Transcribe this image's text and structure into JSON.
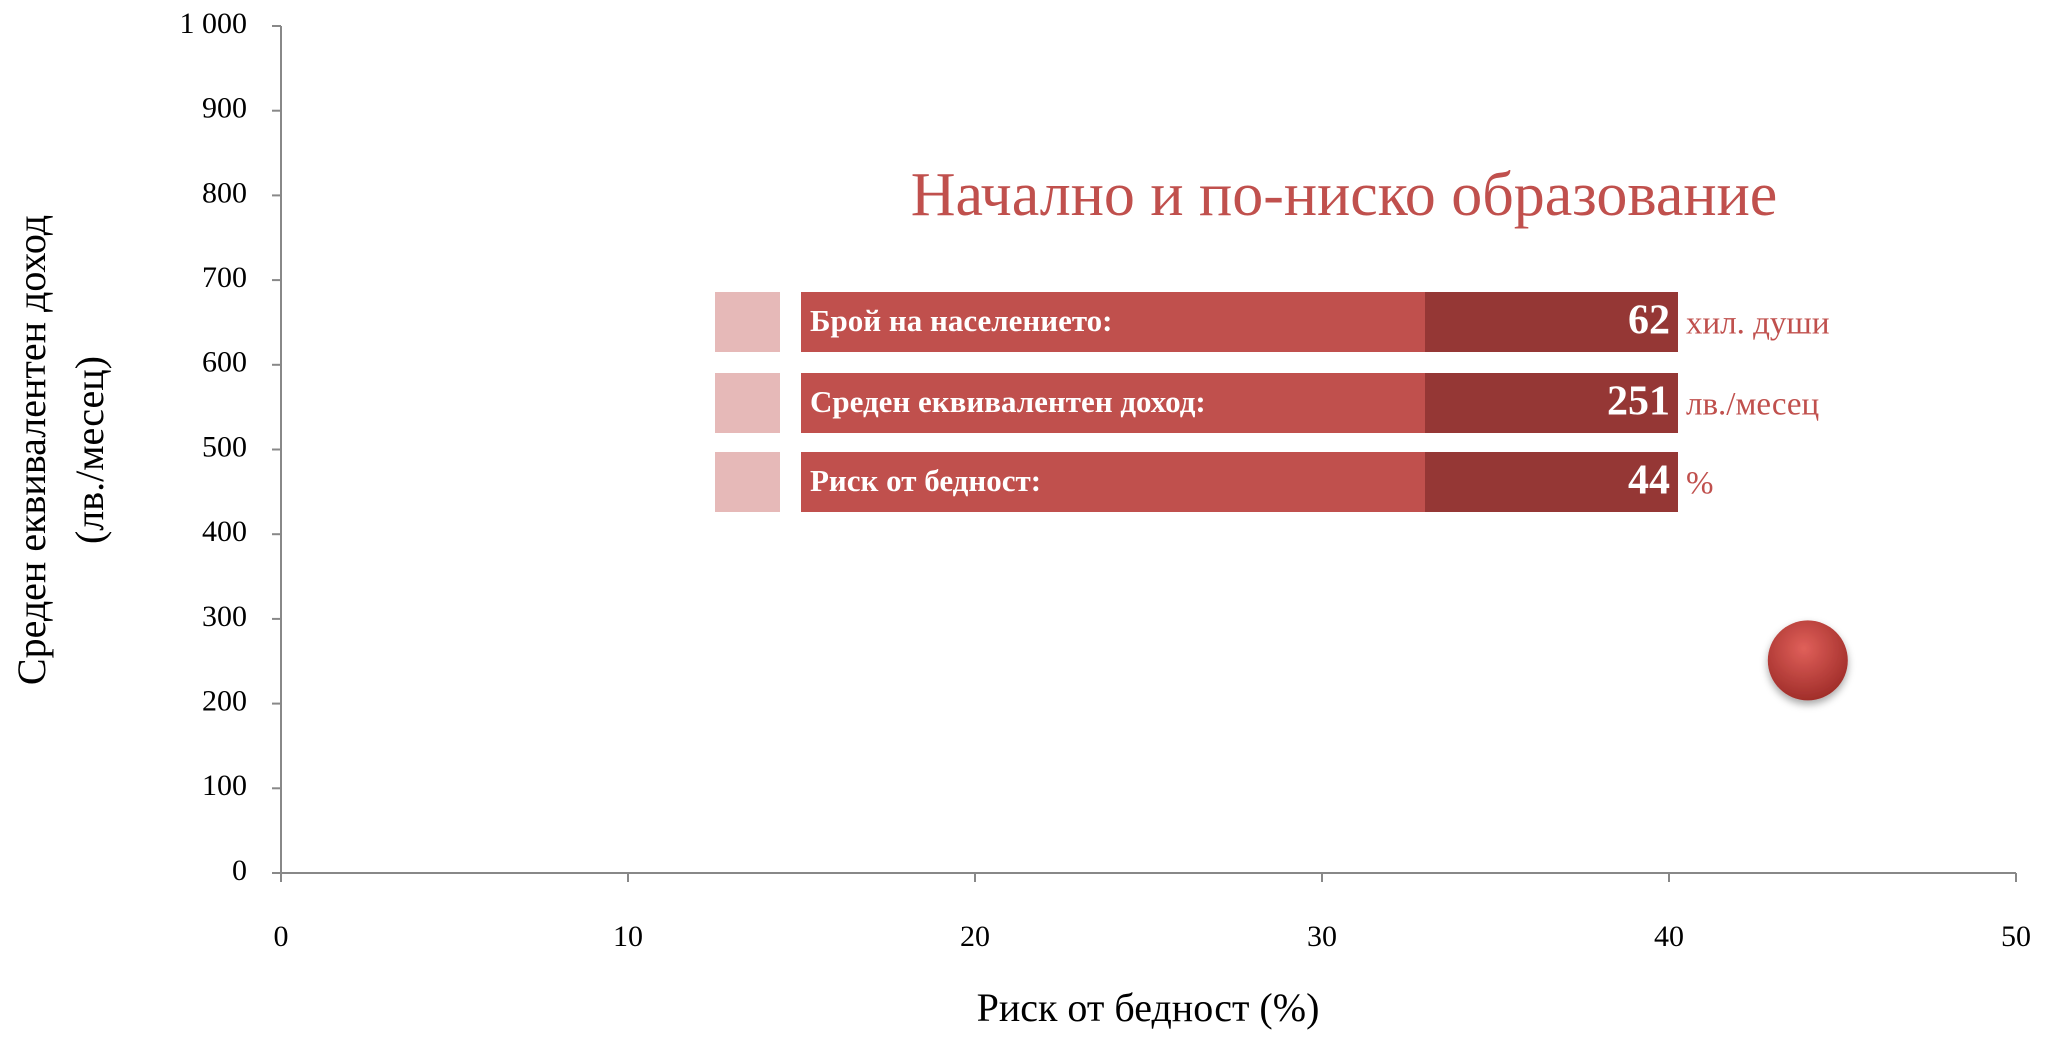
{
  "chart_data": {
    "type": "bubble",
    "title": "Начално и по-ниско образование",
    "xlabel": "Риск от бедност (%)",
    "ylabel": [
      "Среден еквивалентен доход",
      "(лв./месец)"
    ],
    "series": [
      {
        "color": "#c0504d",
        "x": [
          44
        ],
        "values": [
          251
        ],
        "sizes": [
          62
        ]
      }
    ],
    "xlim": [
      0,
      50
    ],
    "xticks": [
      0,
      10,
      20,
      30,
      40,
      50
    ],
    "ylim": [
      0,
      1000
    ],
    "yticks": [
      0,
      100,
      200,
      300,
      400,
      500,
      600,
      700,
      800,
      900,
      {
        "value": 1000,
        "label": "1 000"
      }
    ],
    "grid": false,
    "info": [
      {
        "label": "Брой на населението:",
        "unit": "хил. души"
      },
      {
        "label": "Среден еквивалентен доход:",
        "unit": "лв./месец"
      },
      {
        "label": "Риск от бедност:",
        "unit": "%"
      }
    ]
  }
}
